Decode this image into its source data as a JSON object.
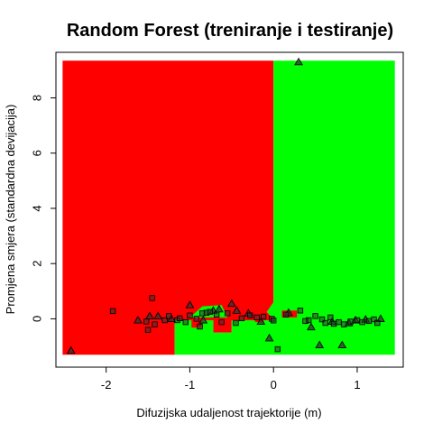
{
  "chart_data": {
    "type": "scatter",
    "title": "Random Forest (treniranje i testiranje)",
    "xlabel": "Difuzijska udaljenost trajektorije (m)",
    "ylabel": "Promjena smjera (standardna devijacija)",
    "xlim": [
      -2.6,
      1.55
    ],
    "ylim": [
      -1.75,
      9.65
    ],
    "x_ticks": [
      -2,
      -1,
      0,
      1
    ],
    "y_ticks": [
      0,
      2,
      4,
      6,
      8
    ],
    "grid": false,
    "colors": {
      "class_a": "#ff0000",
      "class_b": "#00ff00",
      "marker": "#333333"
    },
    "decision_regions": [
      {
        "class": "class_a",
        "polygon": [
          [
            -2.52,
            9.35
          ],
          [
            0.0,
            9.35
          ],
          [
            0.0,
            0.6
          ],
          [
            -0.08,
            0.25
          ],
          [
            0.0,
            0.0
          ],
          [
            0.0,
            -0.05
          ],
          [
            -0.5,
            -0.05
          ],
          [
            -0.5,
            -0.5
          ],
          [
            -0.72,
            -0.5
          ],
          [
            -0.72,
            -0.05
          ],
          [
            -1.18,
            -0.05
          ],
          [
            -1.18,
            -1.3
          ],
          [
            -2.52,
            -1.3
          ]
        ]
      },
      {
        "class": "class_b",
        "polygon": [
          [
            0.0,
            9.35
          ],
          [
            1.45,
            9.35
          ],
          [
            1.45,
            -1.3
          ],
          [
            -1.18,
            -1.3
          ],
          [
            -1.18,
            -0.05
          ],
          [
            -0.72,
            -0.05
          ],
          [
            -0.72,
            -0.5
          ],
          [
            -0.5,
            -0.5
          ],
          [
            -0.5,
            -0.05
          ],
          [
            0.0,
            -0.05
          ],
          [
            0.0,
            0.0
          ],
          [
            -0.08,
            0.25
          ],
          [
            0.0,
            0.6
          ]
        ]
      },
      {
        "class": "class_b",
        "polygon": [
          [
            -1.0,
            0.05
          ],
          [
            -0.55,
            0.05
          ],
          [
            -0.62,
            0.5
          ],
          [
            -0.85,
            0.45
          ]
        ]
      },
      {
        "class": "class_a",
        "polygon": [
          [
            -0.98,
            -0.05
          ],
          [
            -0.86,
            -0.05
          ],
          [
            -0.86,
            -0.32
          ],
          [
            -0.98,
            -0.32
          ]
        ]
      },
      {
        "class": "class_a",
        "polygon": [
          [
            0.1,
            0.3
          ],
          [
            0.28,
            0.3
          ],
          [
            0.28,
            0.05
          ],
          [
            0.1,
            0.05
          ]
        ]
      },
      {
        "class": "class_a",
        "polygon": [
          [
            -0.22,
            -0.02
          ],
          [
            -0.12,
            -0.02
          ],
          [
            -0.12,
            -0.12
          ],
          [
            -0.22,
            -0.12
          ]
        ]
      }
    ],
    "series": [
      {
        "marker": "triangle",
        "points": [
          [
            0.3,
            9.3
          ],
          [
            -2.42,
            -1.15
          ],
          [
            -1.48,
            0.1
          ],
          [
            -1.38,
            0.1
          ],
          [
            -1.22,
            0.0
          ],
          [
            -1.0,
            0.5
          ],
          [
            -0.72,
            0.3
          ],
          [
            -0.65,
            0.35
          ],
          [
            -0.5,
            0.55
          ],
          [
            -0.44,
            0.3
          ],
          [
            -0.3,
            0.2
          ],
          [
            -0.05,
            -0.7
          ],
          [
            0.18,
            0.22
          ],
          [
            0.45,
            -0.3
          ],
          [
            0.55,
            -0.95
          ],
          [
            0.82,
            -0.95
          ],
          [
            0.9,
            -0.15
          ],
          [
            1.1,
            -0.02
          ],
          [
            1.28,
            0.0
          ],
          [
            -1.62,
            -0.05
          ],
          [
            -0.15,
            -0.1
          ],
          [
            0.7,
            -0.1
          ],
          [
            0.98,
            -0.05
          ],
          [
            -0.84,
            -0.05
          ]
        ]
      },
      {
        "marker": "square",
        "points": [
          [
            -1.45,
            0.75
          ],
          [
            -1.92,
            0.28
          ],
          [
            -1.52,
            -0.1
          ],
          [
            -1.5,
            -0.4
          ],
          [
            -1.42,
            -0.2
          ],
          [
            -1.3,
            -0.05
          ],
          [
            -1.25,
            0.1
          ],
          [
            -1.15,
            -0.05
          ],
          [
            -1.05,
            -0.12
          ],
          [
            -1.0,
            0.12
          ],
          [
            -0.92,
            0.0
          ],
          [
            -0.85,
            0.2
          ],
          [
            -0.8,
            0.22
          ],
          [
            -0.76,
            0.25
          ],
          [
            -0.68,
            0.15
          ],
          [
            -0.62,
            -0.12
          ],
          [
            -0.55,
            0.2
          ],
          [
            -0.45,
            -0.15
          ],
          [
            -0.38,
            0.02
          ],
          [
            -0.28,
            0.12
          ],
          [
            -0.2,
            0.05
          ],
          [
            -0.12,
            0.08
          ],
          [
            -0.02,
            0.0
          ],
          [
            0.05,
            -1.1
          ],
          [
            0.15,
            0.15
          ],
          [
            0.32,
            0.3
          ],
          [
            0.42,
            -0.05
          ],
          [
            0.5,
            0.1
          ],
          [
            0.58,
            -0.02
          ],
          [
            0.62,
            -0.15
          ],
          [
            0.68,
            0.05
          ],
          [
            0.72,
            -0.18
          ],
          [
            0.78,
            -0.12
          ],
          [
            0.84,
            -0.2
          ],
          [
            0.92,
            -0.1
          ],
          [
            1.0,
            -0.05
          ],
          [
            1.06,
            -0.12
          ],
          [
            1.14,
            -0.08
          ],
          [
            1.2,
            -0.02
          ],
          [
            1.24,
            -0.15
          ],
          [
            -1.12,
            0.02
          ],
          [
            -0.88,
            -0.28
          ],
          [
            0.0,
            -0.06
          ],
          [
            0.38,
            -0.08
          ]
        ]
      }
    ]
  }
}
